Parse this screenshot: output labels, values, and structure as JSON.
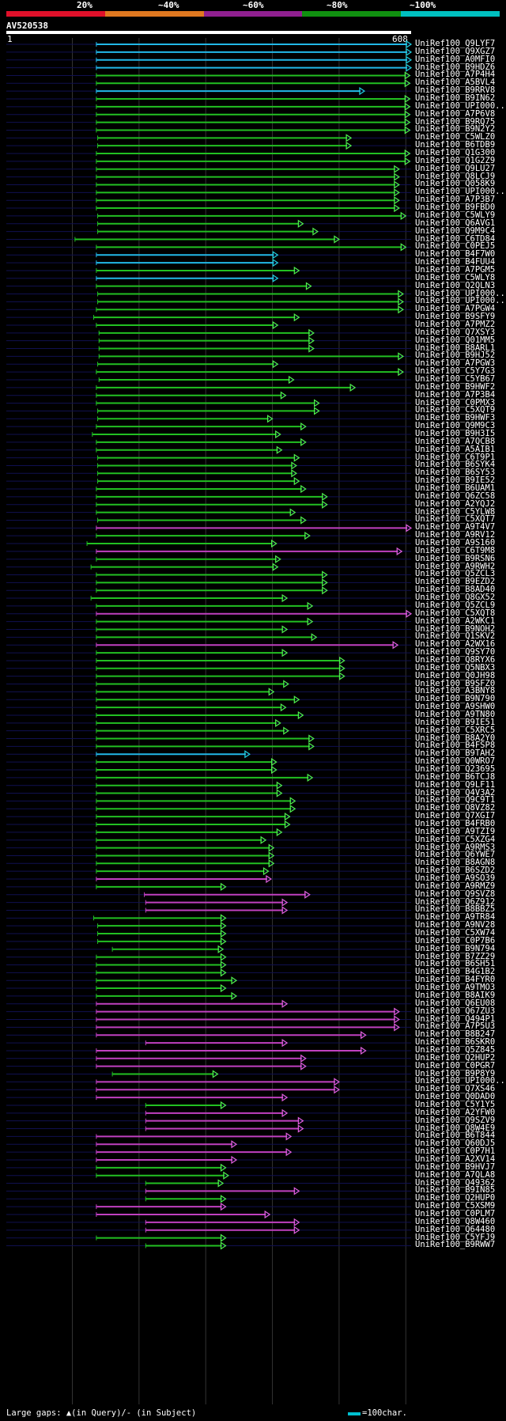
{
  "query": {
    "name": "AV520538",
    "start": "1",
    "end": "608",
    "length": 608
  },
  "legend": {
    "labels": [
      "20%",
      "~40%",
      "~60%",
      "~80%",
      "~100%"
    ],
    "colors": [
      "#e0102a",
      "#e07820",
      "#902090",
      "#109010",
      "#00c0c0"
    ]
  },
  "colors": {
    "cyan": "#22b8e8",
    "green": "#22c022",
    "magenta": "#c040c0",
    "purple": "#9020a0",
    "darkgreen": "#0a7010",
    "arrow_cyan": "#20d0e0",
    "gap_mark": "#ffffa0"
  },
  "footer": {
    "gaps_text": "Large gaps: ▲(in Query)/- (in Subject)",
    "scale_text": "=100char."
  },
  "hits": [
    {
      "name": "UniRef100_Q9LYF7",
      "s": 136,
      "e": 608,
      "c": "cyan"
    },
    {
      "name": "UniRef100_Q9XGZ7",
      "s": 136,
      "e": 608,
      "c": "cyan"
    },
    {
      "name": "UniRef100_A0MFI0",
      "s": 136,
      "e": 608,
      "c": "cyan"
    },
    {
      "name": "UniRef100_B9HDZ6",
      "s": 136,
      "e": 608,
      "c": "cyan"
    },
    {
      "name": "UniRef100_A7P4H4",
      "s": 136,
      "e": 606,
      "c": "green"
    },
    {
      "name": "UniRef100_A5BVL4",
      "s": 136,
      "e": 606,
      "c": "green"
    },
    {
      "name": "UniRef100_B9RRV8",
      "s": 136,
      "e": 538,
      "c": "cyan"
    },
    {
      "name": "UniRef100_B9IN62",
      "s": 136,
      "e": 606,
      "c": "green"
    },
    {
      "name": "UniRef100_UPI000...",
      "s": 136,
      "e": 606,
      "c": "green"
    },
    {
      "name": "UniRef100_A7P6V8",
      "s": 136,
      "e": 606,
      "c": "green"
    },
    {
      "name": "UniRef100_B9RQ75",
      "s": 136,
      "e": 606,
      "c": "green"
    },
    {
      "name": "UniRef100_B9N2Y2",
      "s": 136,
      "e": 606,
      "c": "green"
    },
    {
      "name": "UniRef100_C5WLZ0",
      "s": 138,
      "e": 518,
      "c": "green"
    },
    {
      "name": "UniRef100_B6TDB9",
      "s": 138,
      "e": 518,
      "c": "green"
    },
    {
      "name": "UniRef100_Q1G300",
      "s": 136,
      "e": 606,
      "c": "green"
    },
    {
      "name": "UniRef100_Q1G2Z9",
      "s": 136,
      "e": 606,
      "c": "green"
    },
    {
      "name": "UniRef100_Q9LU27",
      "s": 136,
      "e": 590,
      "c": "green"
    },
    {
      "name": "UniRef100_Q8LCJ9",
      "s": 136,
      "e": 590,
      "c": "green"
    },
    {
      "name": "UniRef100_Q058K9",
      "s": 136,
      "e": 590,
      "c": "green"
    },
    {
      "name": "UniRef100_UPI000...",
      "s": 136,
      "e": 590,
      "c": "green"
    },
    {
      "name": "UniRef100_A7P3B7",
      "s": 136,
      "e": 590,
      "c": "green"
    },
    {
      "name": "UniRef100_B9FBD0",
      "s": 136,
      "e": 590,
      "c": "green"
    },
    {
      "name": "UniRef100_C5WLY9",
      "s": 138,
      "e": 600,
      "c": "green"
    },
    {
      "name": "UniRef100_Q6AVG1",
      "s": 138,
      "e": 446,
      "c": "green"
    },
    {
      "name": "UniRef100_Q9M9C4",
      "s": 138,
      "e": 468,
      "c": "green"
    },
    {
      "name": "UniRef100_C6TD84",
      "s": 104,
      "e": 500,
      "c": "green"
    },
    {
      "name": "UniRef100_C0PEJ5",
      "s": 136,
      "e": 600,
      "c": "green"
    },
    {
      "name": "UniRef100_B4F7W0",
      "s": 136,
      "e": 408,
      "c": "cyan"
    },
    {
      "name": "UniRef100_B4FUU4",
      "s": 136,
      "e": 408,
      "c": "cyan"
    },
    {
      "name": "UniRef100_A7PGM5",
      "s": 136,
      "e": 440,
      "c": "green"
    },
    {
      "name": "UniRef100_C5WLY8",
      "s": 136,
      "e": 408,
      "c": "cyan"
    },
    {
      "name": "UniRef100_Q2QLN3",
      "s": 136,
      "e": 458,
      "c": "green"
    },
    {
      "name": "UniRef100_UPI000...",
      "s": 138,
      "e": 596,
      "c": "green"
    },
    {
      "name": "UniRef100_UPI000...",
      "s": 138,
      "e": 596,
      "c": "green"
    },
    {
      "name": "UniRef100_A7PGW4",
      "s": 136,
      "e": 596,
      "c": "green"
    },
    {
      "name": "UniRef100_B9SFY9",
      "s": 132,
      "e": 440,
      "c": "green"
    },
    {
      "name": "UniRef100_A7PMZ2",
      "s": 136,
      "e": 408,
      "c": "green"
    },
    {
      "name": "UniRef100_Q7XSY3",
      "s": 140,
      "e": 462,
      "c": "green"
    },
    {
      "name": "UniRef100_Q01MM5",
      "s": 140,
      "e": 462,
      "c": "green"
    },
    {
      "name": "UniRef100_B8ARL1",
      "s": 140,
      "e": 462,
      "c": "green"
    },
    {
      "name": "UniRef100_B9HJ52",
      "s": 140,
      "e": 596,
      "c": "green"
    },
    {
      "name": "UniRef100_A7PGW3",
      "s": 138,
      "e": 408,
      "c": "green"
    },
    {
      "name": "UniRef100_C5Y7G3",
      "s": 136,
      "e": 596,
      "c": "green"
    },
    {
      "name": "UniRef100_C5YB67",
      "s": 140,
      "e": 432,
      "c": "green"
    },
    {
      "name": "UniRef100_B9HWF2",
      "s": 136,
      "e": 524,
      "c": "green"
    },
    {
      "name": "UniRef100_A7P3B4",
      "s": 136,
      "e": 420,
      "c": "green"
    },
    {
      "name": "UniRef100_C0PMX3",
      "s": 136,
      "e": 470,
      "c": "green"
    },
    {
      "name": "UniRef100_C5XQT9",
      "s": 138,
      "e": 470,
      "c": "green"
    },
    {
      "name": "UniRef100_B9HWF3",
      "s": 138,
      "e": 400,
      "c": "green"
    },
    {
      "name": "UniRef100_Q9M9C3",
      "s": 136,
      "e": 450,
      "c": "green"
    },
    {
      "name": "UniRef100_B9H3I5",
      "s": 130,
      "e": 412,
      "c": "green"
    },
    {
      "name": "UniRef100_A7QCB8",
      "s": 136,
      "e": 450,
      "c": "green"
    },
    {
      "name": "UniRef100_A5AIB1",
      "s": 136,
      "e": 414,
      "c": "green"
    },
    {
      "name": "UniRef100_C6T9P1",
      "s": 138,
      "e": 440,
      "c": "green"
    },
    {
      "name": "UniRef100_B6SYK4",
      "s": 138,
      "e": 436,
      "c": "green"
    },
    {
      "name": "UniRef100_B6SY53",
      "s": 138,
      "e": 436,
      "c": "green"
    },
    {
      "name": "UniRef100_B9IE52",
      "s": 138,
      "e": 440,
      "c": "green"
    },
    {
      "name": "UniRef100_B6UAM1",
      "s": 136,
      "e": 450,
      "c": "green"
    },
    {
      "name": "UniRef100_Q6ZC58",
      "s": 136,
      "e": 482,
      "c": "green"
    },
    {
      "name": "UniRef100_A2YQJ2",
      "s": 136,
      "e": 482,
      "c": "green"
    },
    {
      "name": "UniRef100_C5YLW8",
      "s": 136,
      "e": 434,
      "c": "green"
    },
    {
      "name": "UniRef100_C5XQT7",
      "s": 138,
      "e": 450,
      "c": "green"
    },
    {
      "name": "UniRef100_A9T4V7",
      "s": 136,
      "e": 608,
      "c": "magenta"
    },
    {
      "name": "UniRef100_A9RV12",
      "s": 136,
      "e": 456,
      "c": "green"
    },
    {
      "name": "UniRef100_A9S160",
      "s": 122,
      "e": 406,
      "c": "green"
    },
    {
      "name": "UniRef100_C6T9M8",
      "s": 136,
      "e": 594,
      "c": "magenta"
    },
    {
      "name": "UniRef100_B9RSN6",
      "s": 136,
      "e": 412,
      "c": "green"
    },
    {
      "name": "UniRef100_A9RWH2",
      "s": 128,
      "e": 408,
      "c": "green"
    },
    {
      "name": "UniRef100_Q5ZCL3",
      "s": 136,
      "e": 482,
      "c": "green"
    },
    {
      "name": "UniRef100_B9EZD2",
      "s": 136,
      "e": 482,
      "c": "green"
    },
    {
      "name": "UniRef100_B8AD40",
      "s": 136,
      "e": 482,
      "c": "green"
    },
    {
      "name": "UniRef100_Q8GX52",
      "s": 128,
      "e": 422,
      "c": "green"
    },
    {
      "name": "UniRef100_Q5ZCL9",
      "s": 136,
      "e": 460,
      "c": "green"
    },
    {
      "name": "UniRef100_C5XQT8",
      "s": 136,
      "e": 608,
      "c": "magenta"
    },
    {
      "name": "UniRef100_A2WKC1",
      "s": 136,
      "e": 460,
      "c": "green"
    },
    {
      "name": "UniRef100_B9NOH2",
      "s": 136,
      "e": 422,
      "c": "green"
    },
    {
      "name": "UniRef100_Q1SKV2",
      "s": 136,
      "e": 466,
      "c": "green"
    },
    {
      "name": "UniRef100_A2WX16",
      "s": 136,
      "e": 588,
      "c": "magenta"
    },
    {
      "name": "UniRef100_Q9SY70",
      "s": 136,
      "e": 422,
      "c": "green"
    },
    {
      "name": "UniRef100_Q8RYX6",
      "s": 136,
      "e": 508,
      "c": "green"
    },
    {
      "name": "UniRef100_Q5NBX3",
      "s": 136,
      "e": 508,
      "c": "green"
    },
    {
      "name": "UniRef100_Q0JH98",
      "s": 136,
      "e": 508,
      "c": "green"
    },
    {
      "name": "UniRef100_B9SFZ0",
      "s": 136,
      "e": 424,
      "c": "green"
    },
    {
      "name": "UniRef100_A3BNY8",
      "s": 136,
      "e": 402,
      "c": "green"
    },
    {
      "name": "UniRef100_B9N790",
      "s": 136,
      "e": 440,
      "c": "green"
    },
    {
      "name": "UniRef100_A9SHW0",
      "s": 136,
      "e": 420,
      "c": "green"
    },
    {
      "name": "UniRef100_A9TN80",
      "s": 136,
      "e": 446,
      "c": "green"
    },
    {
      "name": "UniRef100_B9IE51",
      "s": 136,
      "e": 412,
      "c": "green"
    },
    {
      "name": "UniRef100_C5XRC5",
      "s": 136,
      "e": 424,
      "c": "green"
    },
    {
      "name": "UniRef100_B8A2Y0",
      "s": 136,
      "e": 462,
      "c": "green"
    },
    {
      "name": "UniRef100_B4FSP8",
      "s": 136,
      "e": 462,
      "c": "green"
    },
    {
      "name": "UniRef100_B9TAH2",
      "s": 136,
      "e": 366,
      "c": "cyan"
    },
    {
      "name": "UniRef100_Q0WRO7",
      "s": 136,
      "e": 406,
      "c": "green"
    },
    {
      "name": "UniRef100_Q23695",
      "s": 136,
      "e": 406,
      "c": "green"
    },
    {
      "name": "UniRef100_B6TCJ8",
      "s": 136,
      "e": 460,
      "c": "green"
    },
    {
      "name": "UniRef100_Q9LF11",
      "s": 136,
      "e": 414,
      "c": "green"
    },
    {
      "name": "UniRef100_Q4V3A2",
      "s": 136,
      "e": 414,
      "c": "green"
    },
    {
      "name": "UniRef100_Q9C9T1",
      "s": 136,
      "e": 434,
      "c": "green"
    },
    {
      "name": "UniRef100_Q8VZ82",
      "s": 136,
      "e": 434,
      "c": "green"
    },
    {
      "name": "UniRef100_Q7XGI7",
      "s": 136,
      "e": 426,
      "c": "green"
    },
    {
      "name": "UniRef100_B4FRB0",
      "s": 136,
      "e": 426,
      "c": "green"
    },
    {
      "name": "UniRef100_A9TZI9",
      "s": 136,
      "e": 414,
      "c": "green"
    },
    {
      "name": "UniRef100_C5XZG4",
      "s": 136,
      "e": 390,
      "c": "green"
    },
    {
      "name": "UniRef100_A9RMS3",
      "s": 136,
      "e": 402,
      "c": "green"
    },
    {
      "name": "UniRef100_Q6YWE7",
      "s": 136,
      "e": 402,
      "c": "green"
    },
    {
      "name": "UniRef100_B8AGN8",
      "s": 136,
      "e": 402,
      "c": "green"
    },
    {
      "name": "UniRef100_B6SZD2",
      "s": 136,
      "e": 394,
      "c": "green"
    },
    {
      "name": "UniRef100_A9SO39",
      "s": 136,
      "e": 398,
      "c": "magenta"
    },
    {
      "name": "UniRef100_A9RMZ9",
      "s": 136,
      "e": 330,
      "c": "green"
    },
    {
      "name": "UniRef100_Q9SVZ8",
      "s": 208,
      "e": 456,
      "c": "magenta"
    },
    {
      "name": "UniRef100_Q6Z912",
      "s": 210,
      "e": 422,
      "c": "magenta"
    },
    {
      "name": "UniRef100_B8BBZ5",
      "s": 210,
      "e": 422,
      "c": "magenta"
    },
    {
      "name": "UniRef100_A9TR84",
      "s": 132,
      "e": 330,
      "c": "green"
    },
    {
      "name": "UniRef100_A9NV28",
      "s": 138,
      "e": 330,
      "c": "green"
    },
    {
      "name": "UniRef100_C5XW74",
      "s": 138,
      "e": 330,
      "c": "green"
    },
    {
      "name": "UniRef100_C0P7B6",
      "s": 138,
      "e": 330,
      "c": "green"
    },
    {
      "name": "UniRef100_B9N794",
      "s": 160,
      "e": 326,
      "c": "green"
    },
    {
      "name": "UniRef100_B7ZZ29",
      "s": 136,
      "e": 330,
      "c": "green"
    },
    {
      "name": "UniRef100_B6SH51",
      "s": 136,
      "e": 330,
      "c": "green"
    },
    {
      "name": "UniRef100_B4G1B2",
      "s": 136,
      "e": 330,
      "c": "green"
    },
    {
      "name": "UniRef100_B4FYR0",
      "s": 136,
      "e": 346,
      "c": "green"
    },
    {
      "name": "UniRef100_A9TMO3",
      "s": 136,
      "e": 330,
      "c": "green"
    },
    {
      "name": "UniRef100_B8AIK9",
      "s": 136,
      "e": 346,
      "c": "green"
    },
    {
      "name": "UniRef100_Q6EU08",
      "s": 136,
      "e": 422,
      "c": "magenta"
    },
    {
      "name": "UniRef100_Q67ZU3",
      "s": 136,
      "e": 590,
      "c": "magenta"
    },
    {
      "name": "UniRef100_Q494P1",
      "s": 136,
      "e": 590,
      "c": "magenta"
    },
    {
      "name": "UniRef100_A7P5U3",
      "s": 136,
      "e": 590,
      "c": "magenta"
    },
    {
      "name": "UniRef100_B8B247",
      "s": 136,
      "e": 540,
      "c": "magenta"
    },
    {
      "name": "UniRef100_B6SKR0",
      "s": 210,
      "e": 422,
      "c": "magenta"
    },
    {
      "name": "UniRef100_Q5Z845",
      "s": 136,
      "e": 540,
      "c": "magenta"
    },
    {
      "name": "UniRef100_Q2HUP2",
      "s": 136,
      "e": 450,
      "c": "magenta"
    },
    {
      "name": "UniRef100_C0PGR7",
      "s": 136,
      "e": 450,
      "c": "magenta"
    },
    {
      "name": "UniRef100_B9P8Y9",
      "s": 160,
      "e": 318,
      "c": "green"
    },
    {
      "name": "UniRef100_UPI000...",
      "s": 136,
      "e": 500,
      "c": "magenta"
    },
    {
      "name": "UniRef100_Q7XS46",
      "s": 136,
      "e": 500,
      "c": "magenta"
    },
    {
      "name": "UniRef100_Q0DAD0",
      "s": 136,
      "e": 422,
      "c": "magenta"
    },
    {
      "name": "UniRef100_C5Y1Y5",
      "s": 210,
      "e": 330,
      "c": "green"
    },
    {
      "name": "UniRef100_A2YFW0",
      "s": 210,
      "e": 422,
      "c": "magenta"
    },
    {
      "name": "UniRef100_Q9SZV9",
      "s": 210,
      "e": 446,
      "c": "magenta"
    },
    {
      "name": "UniRef100_Q8W4E9",
      "s": 210,
      "e": 446,
      "c": "magenta"
    },
    {
      "name": "UniRef100_B6T844",
      "s": 136,
      "e": 428,
      "c": "magenta"
    },
    {
      "name": "UniRef100_Q60DJ5",
      "s": 136,
      "e": 346,
      "c": "magenta"
    },
    {
      "name": "UniRef100_C0P7H1",
      "s": 136,
      "e": 428,
      "c": "magenta"
    },
    {
      "name": "UniRef100_A2XV14",
      "s": 136,
      "e": 346,
      "c": "magenta"
    },
    {
      "name": "UniRef100_B9HVJ7",
      "s": 136,
      "e": 330,
      "c": "green"
    },
    {
      "name": "UniRef100_A7QLA8",
      "s": 136,
      "e": 334,
      "c": "green"
    },
    {
      "name": "UniRef100_Q49362",
      "s": 210,
      "e": 326,
      "c": "green"
    },
    {
      "name": "UniRef100_B9IN85",
      "s": 210,
      "e": 440,
      "c": "magenta"
    },
    {
      "name": "UniRef100_Q2HUP0",
      "s": 210,
      "e": 330,
      "c": "green"
    },
    {
      "name": "UniRef100_C5XSM9",
      "s": 136,
      "e": 330,
      "c": "magenta"
    },
    {
      "name": "UniRef100_C0PLM7",
      "s": 136,
      "e": 396,
      "c": "magenta"
    },
    {
      "name": "UniRef100_Q8W460",
      "s": 210,
      "e": 440,
      "c": "magenta"
    },
    {
      "name": "UniRef100_Q64480",
      "s": 210,
      "e": 440,
      "c": "magenta"
    },
    {
      "name": "UniRef100_C5YFJ9",
      "s": 136,
      "e": 330,
      "c": "green"
    },
    {
      "name": "UniRef100_B9RWW7",
      "s": 210,
      "e": 330,
      "c": "green"
    }
  ]
}
